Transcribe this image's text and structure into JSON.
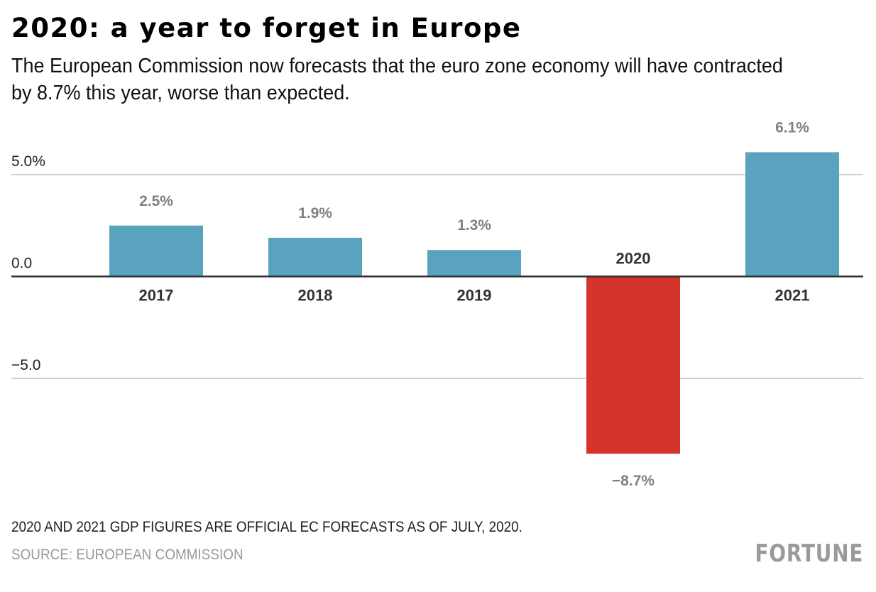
{
  "header": {
    "title": "2020: a year to forget in Europe",
    "subtitle": "The European Commission now forecasts that the euro zone economy will have contracted by 8.7% this year, worse than expected."
  },
  "footer": {
    "note": "2020 AND 2021 GDP FIGURES ARE OFFICIAL EC FORECASTS AS OF JULY, 2020.",
    "source": "SOURCE: EUROPEAN COMMISSION",
    "logo": "FORTUNE"
  },
  "colors": {
    "positive_bar": "#5aa3bf",
    "negative_bar": "#d3352c",
    "value_label": "#808080",
    "category_label": "#333333",
    "gridline": "#d0d0d0",
    "zero_line": "#333333"
  },
  "chart_data": {
    "type": "bar",
    "title": "2020: a year to forget in Europe",
    "xlabel": "",
    "ylabel": "",
    "categories": [
      "2017",
      "2018",
      "2019",
      "2020",
      "2021"
    ],
    "values": [
      2.5,
      1.9,
      1.3,
      -8.7,
      6.1
    ],
    "value_labels": [
      "2.5%",
      "1.9%",
      "1.3%",
      "−8.7%",
      "6.1%"
    ],
    "highlight": "2020",
    "yticks": [
      {
        "value": 5,
        "label": "5.0%"
      },
      {
        "value": 0,
        "label": "0.0"
      },
      {
        "value": -5,
        "label": "−5.0"
      }
    ],
    "ylim": [
      -10,
      6.5
    ],
    "grid": true,
    "legend": "none"
  }
}
